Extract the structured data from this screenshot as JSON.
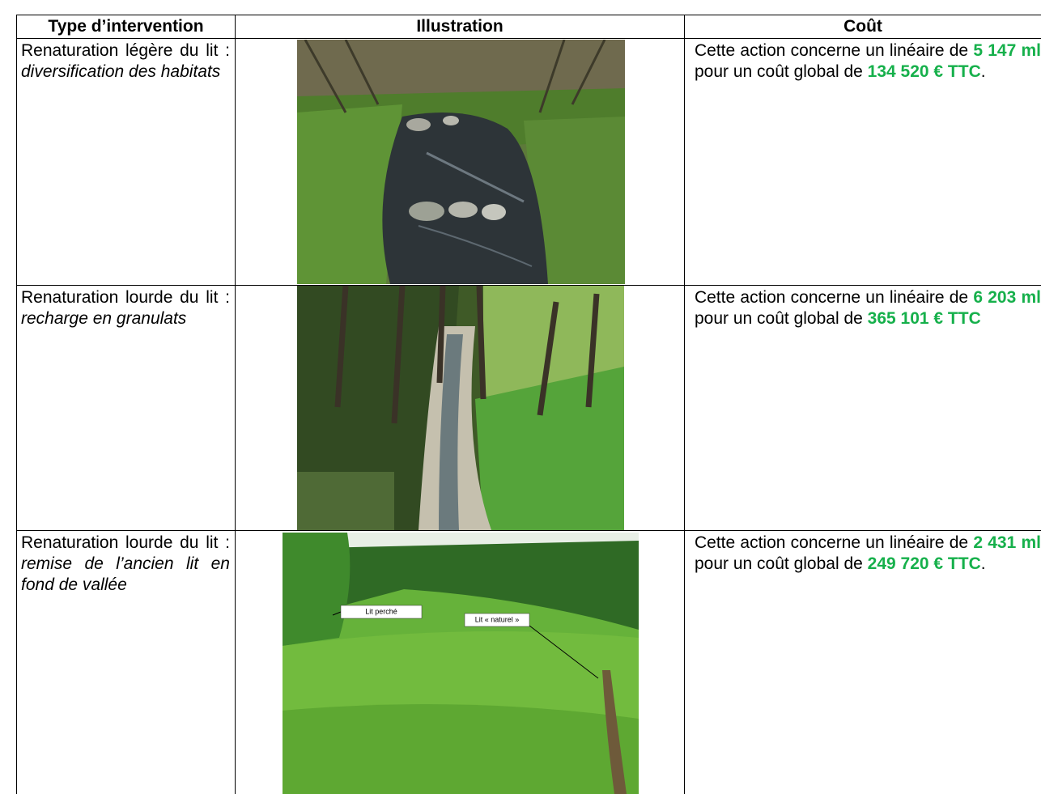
{
  "table": {
    "header": [
      "Type d’intervention",
      "Illustration",
      "Coût"
    ],
    "rows": [
      {
        "type": {
          "text": "Renaturation légère du lit :",
          "detail": "diversification des habitats"
        },
        "cost": {
          "before": "Cette action concerne un linéaire de",
          "length": "5 147 ml",
          "middle": "pour un coût global de",
          "amount": "134 520 € TTC",
          "after": "."
        }
      },
      {
        "type": {
          "text": "Renaturation lourde du lit :",
          "detail": "recharge en granulats"
        },
        "cost": {
          "before": "Cette action concerne un linéaire de",
          "length": "6 203 ml",
          "middle": "pour un coût global de",
          "amount": "365 101 € TTC"
        }
      },
      {
        "type": {
          "text": "Renaturation lourde du lit :",
          "detail": "remise de l’ancien lit en fond de vallée"
        },
        "image_labels": [
          "Lit perché",
          "Lit « naturel »"
        ],
        "cost": {
          "before": "Cette action concerne un linéaire de",
          "length": "2 431 ml",
          "middle": "pour un coût global de",
          "amount": "249 720 € TTC",
          "after": "."
        }
      }
    ]
  }
}
